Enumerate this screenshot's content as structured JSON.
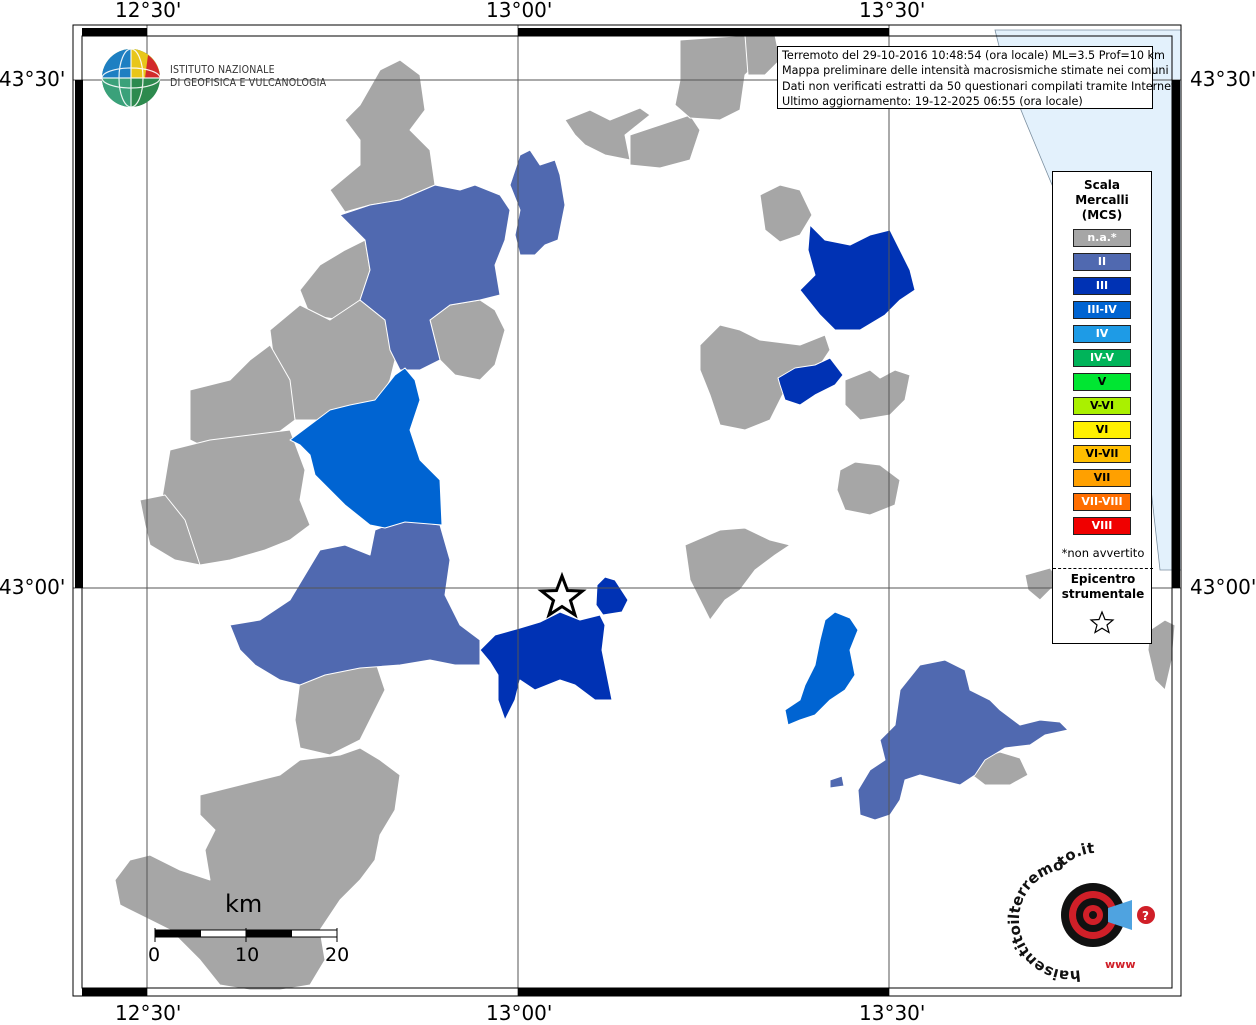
{
  "map": {
    "latitude_labels": [
      "43°30'",
      "43°00'"
    ],
    "longitude_labels": [
      "12°30'",
      "13°00'",
      "13°30'"
    ]
  },
  "info_box": {
    "line1": "Terremoto del 29-10-2016 10:48:54 (ora locale) ML=3.5 Prof=10 km",
    "line2": "Mappa preliminare delle intensità macrosismiche stimate nei comuni",
    "line3": "Dati non verificati estratti da 50 questionari compilati tramite Internet.",
    "line4": "Ultimo aggiornamento: 19-12-2025 06:55 (ora locale)"
  },
  "legend": {
    "title_line1": "Scala",
    "title_line2": "Mercalli",
    "title_line3": "(MCS)",
    "items": [
      {
        "label": "n.a.*",
        "color": "#a6a6a6"
      },
      {
        "label": "II",
        "color": "#5069b0"
      },
      {
        "label": "III",
        "color": "#0032b4"
      },
      {
        "label": "III-IV",
        "color": "#0064d2"
      },
      {
        "label": "IV",
        "color": "#1e9be6"
      },
      {
        "label": "IV-V",
        "color": "#00b45a"
      },
      {
        "label": "V",
        "color": "#00e632"
      },
      {
        "label": "V-VI",
        "color": "#aaf000"
      },
      {
        "label": "VI",
        "color": "#fff000"
      },
      {
        "label": "VI-VII",
        "color": "#ffbe00"
      },
      {
        "label": "VII",
        "color": "#ffa000"
      },
      {
        "label": "VII-VIII",
        "color": "#ff6e00"
      },
      {
        "label": "VIII",
        "color": "#f00000"
      }
    ],
    "note": "*non avvertito",
    "epicentre_line1": "Epicentro",
    "epicentre_line2": "strumentale",
    "epicentre_symbol": "star-icon"
  },
  "logo_ingv": {
    "line1": "ISTITUTO NAZIONALE",
    "line2": "DI GEOFISICA E VULCANOLOGIA"
  },
  "logo_hsit": {
    "text": "haisentitoilterremoto.it",
    "sub": "www"
  },
  "scale_bar": {
    "unit": "km",
    "ticks": [
      "0",
      "10",
      "20"
    ]
  },
  "colors": {
    "na": "#a6a6a6",
    "II": "#5069b0",
    "III": "#0032b4",
    "III-IV": "#0064d2",
    "sea": "#e3f1fc"
  }
}
